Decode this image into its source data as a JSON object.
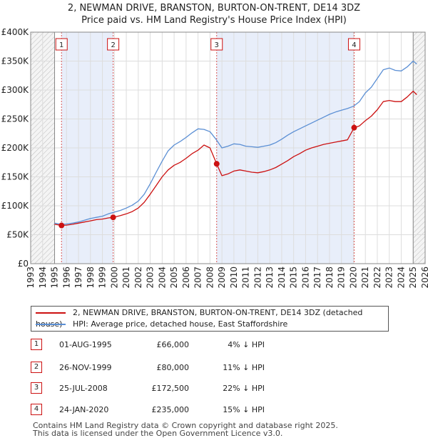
{
  "title_line1": "2, NEWMAN DRIVE, BRANSTON, BURTON-ON-TRENT, DE14 3DZ",
  "title_line2": "Price paid vs. HM Land Registry's House Price Index (HPI)",
  "legend": {
    "property_label": "2, NEWMAN DRIVE, BRANSTON, BURTON-ON-TRENT, DE14 3DZ (detached house)",
    "hpi_label": "HPI: Average price, detached house, East Staffordshire"
  },
  "colors": {
    "property": "#cc1111",
    "hpi": "#5b8fd4",
    "shade": "#e8eefa",
    "grid": "#dddddd"
  },
  "sales": [
    {
      "num": "1",
      "date": "01-AUG-1995",
      "price": "£66,000",
      "delta": "4% ↓ HPI"
    },
    {
      "num": "2",
      "date": "26-NOV-1999",
      "price": "£80,000",
      "delta": "11% ↓ HPI"
    },
    {
      "num": "3",
      "date": "25-JUL-2008",
      "price": "£172,500",
      "delta": "22% ↓ HPI"
    },
    {
      "num": "4",
      "date": "24-JAN-2020",
      "price": "£235,000",
      "delta": "15% ↓ HPI"
    }
  ],
  "footer_line1": "Contains HM Land Registry data © Crown copyright and database right 2025.",
  "footer_line2": "This data is licensed under the Open Government Licence v3.0.",
  "chart_data": {
    "type": "line",
    "title": "2, NEWMAN DRIVE, BRANSTON, BURTON-ON-TRENT, DE14 3DZ",
    "subtitle": "Price paid vs. HM Land Registry's House Price Index (HPI)",
    "xlabel": "",
    "ylabel": "",
    "xlim": [
      1993,
      2026
    ],
    "ylim": [
      0,
      400000
    ],
    "x_ticks": [
      1993,
      1994,
      1995,
      1996,
      1997,
      1998,
      1999,
      2000,
      2001,
      2002,
      2003,
      2004,
      2005,
      2006,
      2007,
      2008,
      2009,
      2010,
      2011,
      2012,
      2013,
      2014,
      2015,
      2016,
      2017,
      2018,
      2019,
      2020,
      2021,
      2022,
      2023,
      2024,
      2025,
      2026
    ],
    "y_ticks": [
      0,
      50000,
      100000,
      150000,
      200000,
      250000,
      300000,
      350000,
      400000
    ],
    "y_tick_labels": [
      "£0",
      "£50K",
      "£100K",
      "£150K",
      "£200K",
      "£250K",
      "£300K",
      "£350K",
      "£400K"
    ],
    "hatch_before": 1995.0,
    "hatch_after": 2025.0,
    "sales": [
      {
        "num": "1",
        "x": 1995.58,
        "y": 66000
      },
      {
        "num": "2",
        "x": 1999.9,
        "y": 80000
      },
      {
        "num": "3",
        "x": 2008.56,
        "y": 172500
      },
      {
        "num": "4",
        "x": 2020.06,
        "y": 235000
      }
    ],
    "series": [
      {
        "name": "HPI: Average price, detached house, East Staffordshire",
        "x": [
          1995.0,
          1995.5,
          1996.0,
          1996.5,
          1997.0,
          1997.5,
          1998.0,
          1998.5,
          1999.0,
          1999.5,
          2000.0,
          2000.5,
          2001.0,
          2001.5,
          2002.0,
          2002.5,
          2003.0,
          2003.5,
          2004.0,
          2004.5,
          2005.0,
          2005.5,
          2006.0,
          2006.5,
          2007.0,
          2007.5,
          2008.0,
          2008.5,
          2009.0,
          2009.5,
          2010.0,
          2010.5,
          2011.0,
          2011.5,
          2012.0,
          2012.5,
          2013.0,
          2013.5,
          2014.0,
          2014.5,
          2015.0,
          2015.5,
          2016.0,
          2016.5,
          2017.0,
          2017.5,
          2018.0,
          2018.5,
          2019.0,
          2019.5,
          2020.0,
          2020.5,
          2021.0,
          2021.5,
          2022.0,
          2022.5,
          2023.0,
          2023.5,
          2024.0,
          2024.5,
          2025.0,
          2025.3
        ],
        "values": [
          70000,
          68000,
          68500,
          70000,
          72000,
          75000,
          78000,
          80000,
          82000,
          86000,
          89000,
          92000,
          96000,
          101000,
          108000,
          120000,
          138000,
          158000,
          177000,
          195000,
          205000,
          211000,
          218000,
          226000,
          233000,
          232000,
          228000,
          215000,
          200000,
          203000,
          207000,
          206000,
          203000,
          202000,
          201000,
          203000,
          205000,
          209000,
          215000,
          222000,
          228000,
          233000,
          238000,
          243000,
          248000,
          253000,
          258000,
          262000,
          265000,
          268000,
          272000,
          280000,
          295000,
          305000,
          320000,
          335000,
          338000,
          334000,
          333000,
          340000,
          350000,
          345000
        ]
      },
      {
        "name": "2, NEWMAN DRIVE, BRANSTON, BURTON-ON-TRENT, DE14 3DZ (detached house)",
        "x": [
          1995.0,
          1995.58,
          1996.0,
          1996.5,
          1997.0,
          1997.5,
          1998.0,
          1998.5,
          1999.0,
          1999.5,
          1999.9,
          2000.5,
          2001.0,
          2001.5,
          2002.0,
          2002.5,
          2003.0,
          2003.5,
          2004.0,
          2004.5,
          2005.0,
          2005.5,
          2006.0,
          2006.5,
          2007.0,
          2007.5,
          2008.0,
          2008.56,
          2009.0,
          2009.5,
          2010.0,
          2010.5,
          2011.0,
          2011.5,
          2012.0,
          2012.5,
          2013.0,
          2013.5,
          2014.0,
          2014.5,
          2015.0,
          2015.5,
          2016.0,
          2016.5,
          2017.0,
          2017.5,
          2018.0,
          2018.5,
          2019.0,
          2019.5,
          2020.06,
          2020.5,
          2021.0,
          2021.5,
          2022.0,
          2022.5,
          2023.0,
          2023.5,
          2024.0,
          2024.5,
          2025.0,
          2025.3
        ],
        "values": [
          68000,
          66000,
          66500,
          68000,
          70000,
          72000,
          74000,
          76000,
          77000,
          79000,
          80000,
          83000,
          86000,
          90000,
          96000,
          106000,
          120000,
          135000,
          150000,
          162000,
          170000,
          175000,
          182000,
          190000,
          196000,
          205000,
          200000,
          172500,
          152000,
          155000,
          160000,
          162000,
          160000,
          158000,
          157000,
          159000,
          162000,
          166000,
          172000,
          178000,
          185000,
          190000,
          196000,
          200000,
          203000,
          206000,
          208000,
          210000,
          212000,
          214000,
          235000,
          238000,
          247000,
          255000,
          266000,
          280000,
          282000,
          280000,
          280000,
          288000,
          298000,
          292000
        ]
      }
    ]
  }
}
